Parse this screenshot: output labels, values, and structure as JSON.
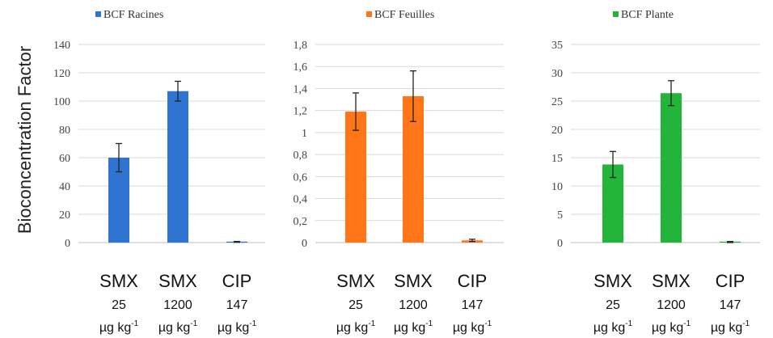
{
  "y_axis_title": "Bioconcentration Factor",
  "category_labels": [
    {
      "line1": "SMX",
      "line2": "25",
      "line3_base": "µg kg",
      "line3_sup": "-1"
    },
    {
      "line1": "SMX",
      "line2": "1200",
      "line3_base": "µg kg",
      "line3_sup": "-1"
    },
    {
      "line1": "CIP",
      "line2": "147",
      "line3_base": "µg kg",
      "line3_sup": "-1"
    }
  ],
  "chart_data": [
    {
      "type": "bar",
      "legend": "BCF Racines",
      "color": "#2f74d0",
      "categories": [
        "SMX 25 µg kg-1",
        "SMX 1200 µg kg-1",
        "CIP 147 µg kg-1"
      ],
      "values": [
        60,
        107,
        0.5
      ],
      "errors": [
        10,
        7,
        0.3
      ],
      "ylim": [
        0,
        140
      ],
      "yticks": [
        "0",
        "20",
        "40",
        "60",
        "80",
        "100",
        "120",
        "140"
      ],
      "grid": true
    },
    {
      "type": "bar",
      "legend": "BCF Feuilles",
      "color": "#ff7518",
      "categories": [
        "SMX 25 µg kg-1",
        "SMX 1200 µg kg-1",
        "CIP 147 µg kg-1"
      ],
      "values": [
        1.19,
        1.33,
        0.02
      ],
      "errors": [
        0.17,
        0.23,
        0.01
      ],
      "ylim": [
        0,
        1.8
      ],
      "yticks": [
        "0",
        "0,2",
        "0,4",
        "0,6",
        "0,8",
        "1",
        "1,2",
        "1,4",
        "1,6",
        "1,8"
      ],
      "grid": true
    },
    {
      "type": "bar",
      "legend": "BCF Plante",
      "color": "#22b53a",
      "categories": [
        "SMX 25 µg kg-1",
        "SMX 1200 µg kg-1",
        "CIP 147 µg kg-1"
      ],
      "values": [
        13.8,
        26.4,
        0.1
      ],
      "errors": [
        2.3,
        2.2,
        0.1
      ],
      "ylim": [
        0,
        35
      ],
      "yticks": [
        "0",
        "5",
        "10",
        "15",
        "20",
        "25",
        "30",
        "35"
      ],
      "grid": true
    }
  ]
}
